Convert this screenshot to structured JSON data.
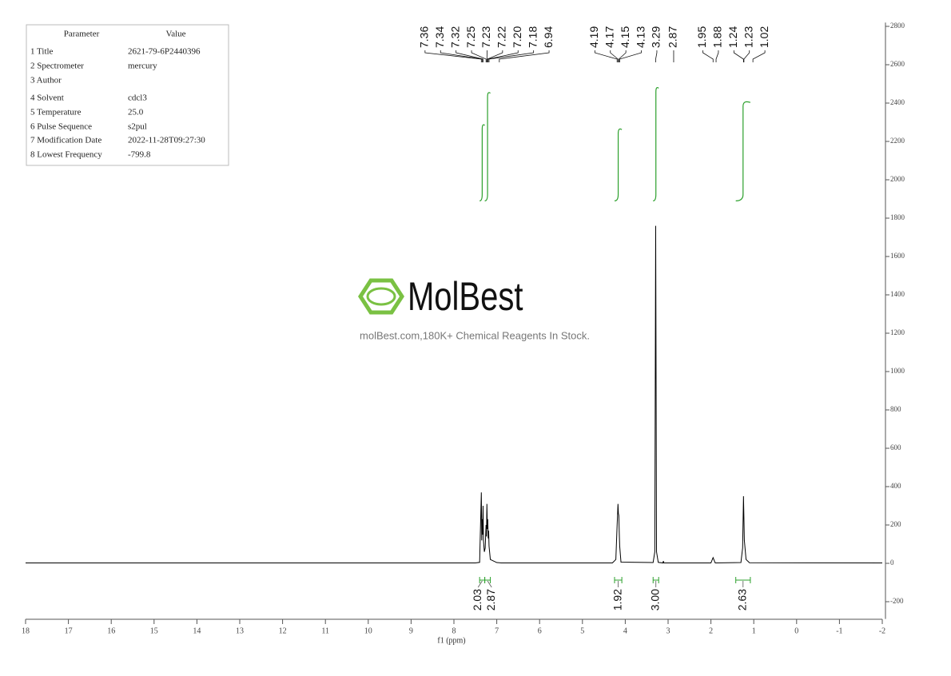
{
  "parameters": {
    "header": [
      "Parameter",
      "Value"
    ],
    "rows": [
      [
        "1 Title",
        "2621-79-6P2440396"
      ],
      [
        "2 Spectrometer",
        "mercury"
      ],
      [
        "3 Author"
      ],
      [
        "4 Solvent",
        "cdcl3"
      ],
      [
        "5 Temperature",
        "25.0"
      ],
      [
        "6 Pulse Sequence",
        "s2pul"
      ],
      [
        "7 Modification Date",
        "2022-11-28T09:27:30"
      ],
      [
        "8 Lowest Frequency",
        "-799.8"
      ]
    ]
  },
  "watermark": {
    "brand": "MolBest",
    "tagline": "molBest.com,180K+ Chemical Reagents In Stock."
  },
  "chart_data": {
    "type": "line",
    "xlabel": "f1 (ppm)",
    "color": "#000000",
    "x": [
      18,
      7.5,
      7.4,
      7.36,
      7.35,
      7.34,
      7.33,
      7.32,
      7.31,
      7.29,
      7.27,
      7.25,
      7.24,
      7.23,
      7.22,
      7.21,
      7.2,
      7.19,
      7.18,
      7.15,
      7.0,
      6.94,
      6.9,
      4.3,
      4.22,
      4.19,
      4.18,
      4.17,
      4.16,
      4.15,
      4.14,
      4.13,
      4.1,
      3.35,
      3.31,
      3.29,
      3.27,
      3.23,
      3.12,
      3.11,
      3.1,
      2.0,
      1.95,
      1.9,
      1.3,
      1.26,
      1.24,
      1.22,
      1.18,
      1.1,
      -2
    ],
    "values": [
      2,
      2,
      5,
      370,
      120,
      230,
      150,
      300,
      120,
      60,
      80,
      200,
      140,
      310,
      180,
      230,
      130,
      170,
      90,
      20,
      4,
      3,
      2,
      2,
      20,
      200,
      250,
      310,
      260,
      250,
      160,
      90,
      6,
      4,
      60,
      1760,
      60,
      5,
      2,
      12,
      2,
      2,
      30,
      2,
      4,
      80,
      350,
      120,
      20,
      3,
      2
    ],
    "xlim": [
      18,
      -2
    ],
    "xticks": [
      18,
      17,
      16,
      15,
      14,
      13,
      12,
      11,
      10,
      9,
      8,
      7,
      6,
      5,
      4,
      3,
      2,
      1,
      0,
      -1,
      -2
    ],
    "ylim": [
      -290,
      2820
    ],
    "yticks": [
      -200,
      0,
      200,
      400,
      600,
      800,
      1000,
      1200,
      1400,
      1600,
      1800,
      2000,
      2200,
      2400,
      2600,
      2800
    ],
    "peak_labels": [
      7.36,
      7.34,
      7.32,
      7.25,
      7.23,
      7.22,
      {
        "value": 7.2,
        "label": "7.20"
      },
      7.18,
      6.94,
      4.19,
      4.17,
      4.15,
      4.13,
      3.29,
      2.87,
      1.95,
      1.88,
      1.24,
      1.23,
      1.02
    ],
    "integral_color": "#2ca02c",
    "integrals": [
      {
        "from": 7.4,
        "to": 7.28,
        "value": 2.03
      },
      {
        "from": 7.28,
        "to": 7.15,
        "value": 2.87
      },
      {
        "from": 4.25,
        "to": 4.08,
        "value": 1.92
      },
      {
        "from": 3.35,
        "to": 3.22,
        "value": 3,
        "label": "3.00"
      },
      {
        "from": 1.42,
        "to": 1.08,
        "value": 2.63
      }
    ]
  }
}
